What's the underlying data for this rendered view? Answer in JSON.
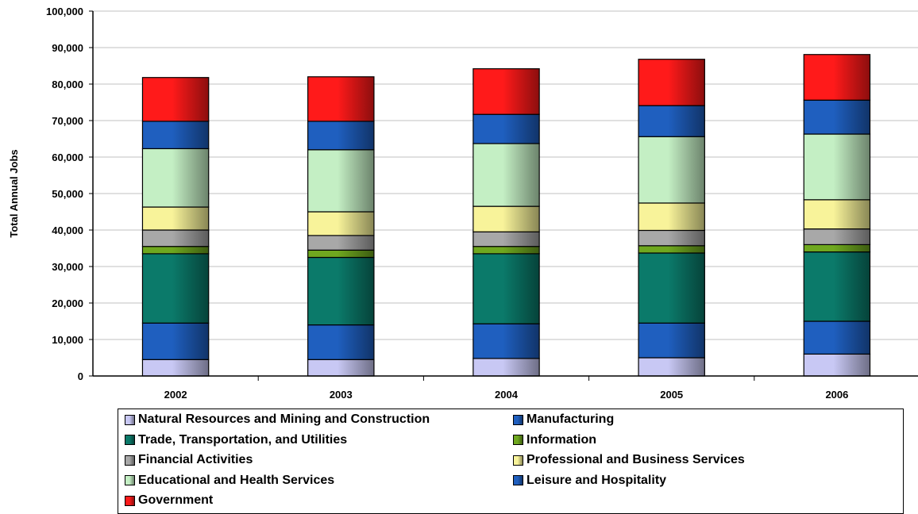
{
  "chart_data": {
    "type": "bar",
    "stacked": true,
    "categories": [
      "2002",
      "2003",
      "2004",
      "2005",
      "2006"
    ],
    "ylabel": "Total Annual Jobs",
    "xlabel": "",
    "ylim": [
      0,
      100000
    ],
    "yticks": [
      "0",
      "10,000",
      "20,000",
      "30,000",
      "40,000",
      "50,000",
      "60,000",
      "70,000",
      "80,000",
      "90,000",
      "100,000"
    ],
    "grid": true,
    "legend_position": "bottom",
    "series": [
      {
        "name": "Natural Resources and Mining and Construction",
        "color": "#c8c8f4",
        "values": [
          4500,
          4500,
          4800,
          5000,
          6000
        ]
      },
      {
        "name": "Manufacturing",
        "color": "#1f5fbf",
        "values": [
          10000,
          9500,
          9500,
          9500,
          9000
        ]
      },
      {
        "name": "Trade, Transportation, and Utilities",
        "color": "#0b7a6a",
        "values": [
          19000,
          18500,
          19200,
          19200,
          19000
        ]
      },
      {
        "name": "Information",
        "color": "#6fa81f",
        "values": [
          2000,
          2000,
          2000,
          2000,
          2000
        ]
      },
      {
        "name": "Financial Activities",
        "color": "#a8a8a8",
        "values": [
          4500,
          4000,
          4000,
          4200,
          4300
        ]
      },
      {
        "name": "Professional and Business Services",
        "color": "#f8f39a",
        "values": [
          6300,
          6500,
          7000,
          7500,
          8000
        ]
      },
      {
        "name": "Educational and Health Services",
        "color": "#c4efc4",
        "values": [
          16000,
          17000,
          17200,
          18200,
          18000
        ]
      },
      {
        "name": "Leisure and Hospitality",
        "color": "#1f5fbf",
        "values": [
          7500,
          7800,
          8000,
          8500,
          9300
        ]
      },
      {
        "name": "Government",
        "color": "#ff1a1a",
        "values": [
          12000,
          12200,
          12500,
          12700,
          12500
        ]
      }
    ]
  }
}
